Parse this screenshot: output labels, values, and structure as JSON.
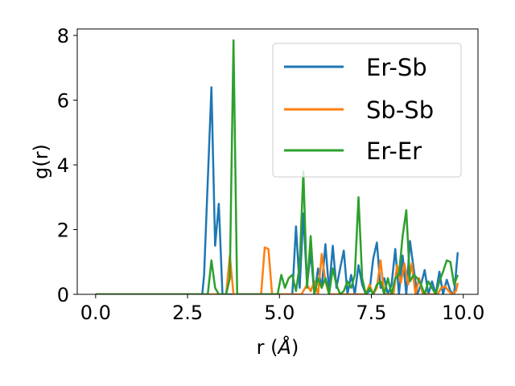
{
  "chart_data": {
    "type": "line",
    "title": "",
    "xlabel": "r (",
    "xlabel_unit": "Å",
    "xlabel_close": ")",
    "ylabel": "g(r)",
    "xlim": [
      -0.5,
      10.4
    ],
    "ylim": [
      0,
      8.2
    ],
    "xticks": [
      0.0,
      2.5,
      5.0,
      7.5,
      10.0
    ],
    "xtick_labels": [
      "0.0",
      "2.5",
      "5.0",
      "7.5",
      "10.0"
    ],
    "yticks": [
      0,
      2,
      4,
      6,
      8
    ],
    "ytick_labels": [
      "0",
      "2",
      "4",
      "6",
      "8"
    ],
    "grid": false,
    "legend_position": "top-right",
    "series": [
      {
        "name": "Er-Sb",
        "color": "#1f77b4",
        "x": [
          0.0,
          0.1,
          0.5,
          1.0,
          1.5,
          2.0,
          2.5,
          2.9,
          2.95,
          3.05,
          3.15,
          3.25,
          3.35,
          3.45,
          3.55,
          5.35,
          5.45,
          5.55,
          5.65,
          5.75,
          5.85,
          5.95,
          6.05,
          6.15,
          6.25,
          6.35,
          6.45,
          6.55,
          6.65,
          6.75,
          6.85,
          6.95,
          7.05,
          7.15,
          7.25,
          7.35,
          7.45,
          7.55,
          7.65,
          7.75,
          7.85,
          7.95,
          8.05,
          8.15,
          8.25,
          8.35,
          8.45,
          8.55,
          8.65,
          8.75,
          8.85,
          8.95,
          9.05,
          9.15,
          9.25,
          9.35,
          9.45,
          9.55,
          9.65,
          9.75,
          9.85
        ],
        "y": [
          0,
          0,
          0,
          0,
          0,
          0,
          0,
          0,
          0.6,
          3.5,
          6.4,
          1.5,
          2.8,
          0,
          0,
          0,
          2.1,
          0.2,
          2.5,
          0.3,
          1.3,
          0,
          0.8,
          0.2,
          1.55,
          0.1,
          1.5,
          0.2,
          0.8,
          1.35,
          0,
          0.6,
          0,
          0.9,
          0.3,
          0,
          0.1,
          1.1,
          1.6,
          0.2,
          0.5,
          0,
          0.3,
          1.4,
          0,
          1.2,
          0,
          1.65,
          0.8,
          0,
          0.3,
          0.75,
          0,
          0.4,
          0,
          0.7,
          0,
          0.45,
          0.1,
          0,
          1.3
        ]
      },
      {
        "name": "Sb-Sb",
        "color": "#ff7f0e",
        "x": [
          0.0,
          0.5,
          1.0,
          1.5,
          2.0,
          2.5,
          3.0,
          3.55,
          3.65,
          3.75,
          4.5,
          4.6,
          4.7,
          4.8,
          5.6,
          5.75,
          5.85,
          5.95,
          6.05,
          6.15,
          6.25,
          6.35,
          7.35,
          7.45,
          7.55,
          7.65,
          7.75,
          7.85,
          8.1,
          8.2,
          8.3,
          8.4,
          8.5,
          8.6,
          8.7,
          8.8,
          8.9,
          9.0,
          9.3,
          9.4,
          9.5,
          9.6,
          9.7,
          9.8,
          9.85
        ],
        "y": [
          0,
          0,
          0,
          0,
          0,
          0,
          0,
          0,
          1.2,
          0,
          0,
          1.45,
          1.4,
          0,
          0,
          0.3,
          0.1,
          0.4,
          0,
          1.25,
          0.4,
          0,
          0,
          0.3,
          0,
          0.2,
          1.05,
          0,
          0,
          0.9,
          0.35,
          0.95,
          0.3,
          0.95,
          0,
          0.5,
          0,
          0,
          0,
          0.2,
          0.25,
          0.1,
          0,
          0.1,
          0.35
        ]
      },
      {
        "name": "Er-Er",
        "color": "#2ca02c",
        "x": [
          0.0,
          0.5,
          1.0,
          1.5,
          2.0,
          2.5,
          3.0,
          3.05,
          3.15,
          3.25,
          3.35,
          3.55,
          3.65,
          3.75,
          3.85,
          3.95,
          4.95,
          5.05,
          5.15,
          5.25,
          5.35,
          5.45,
          5.55,
          5.65,
          5.75,
          5.85,
          5.95,
          6.05,
          6.15,
          6.25,
          6.35,
          6.45,
          6.55,
          6.65,
          6.75,
          6.85,
          6.95,
          7.05,
          7.15,
          7.25,
          7.35,
          7.45,
          7.55,
          7.65,
          7.75,
          7.85,
          7.95,
          8.05,
          8.15,
          8.25,
          8.35,
          8.45,
          8.55,
          8.65,
          8.75,
          8.85,
          8.95,
          9.05,
          9.15,
          9.25,
          9.35,
          9.45,
          9.55,
          9.65,
          9.75,
          9.85
        ],
        "y": [
          0,
          0,
          0,
          0,
          0,
          0,
          0,
          0,
          1.05,
          0.2,
          0,
          0,
          0.5,
          7.85,
          0,
          0,
          0,
          0.6,
          0.2,
          0.5,
          0.6,
          0.1,
          0.9,
          3.8,
          0.2,
          1.8,
          0,
          0.5,
          0.2,
          0.5,
          0,
          0.8,
          0.3,
          0,
          0.1,
          0.4,
          0.2,
          0.6,
          3.0,
          0.5,
          0,
          0.2,
          0,
          0.3,
          0.4,
          0,
          0.5,
          0,
          0.5,
          0.6,
          1.8,
          2.6,
          0.4,
          0.6,
          0.5,
          0.3,
          0,
          0.4,
          0.2,
          0,
          0.4,
          0.7,
          1.05,
          1.0,
          0.3,
          0.6
        ]
      }
    ]
  }
}
